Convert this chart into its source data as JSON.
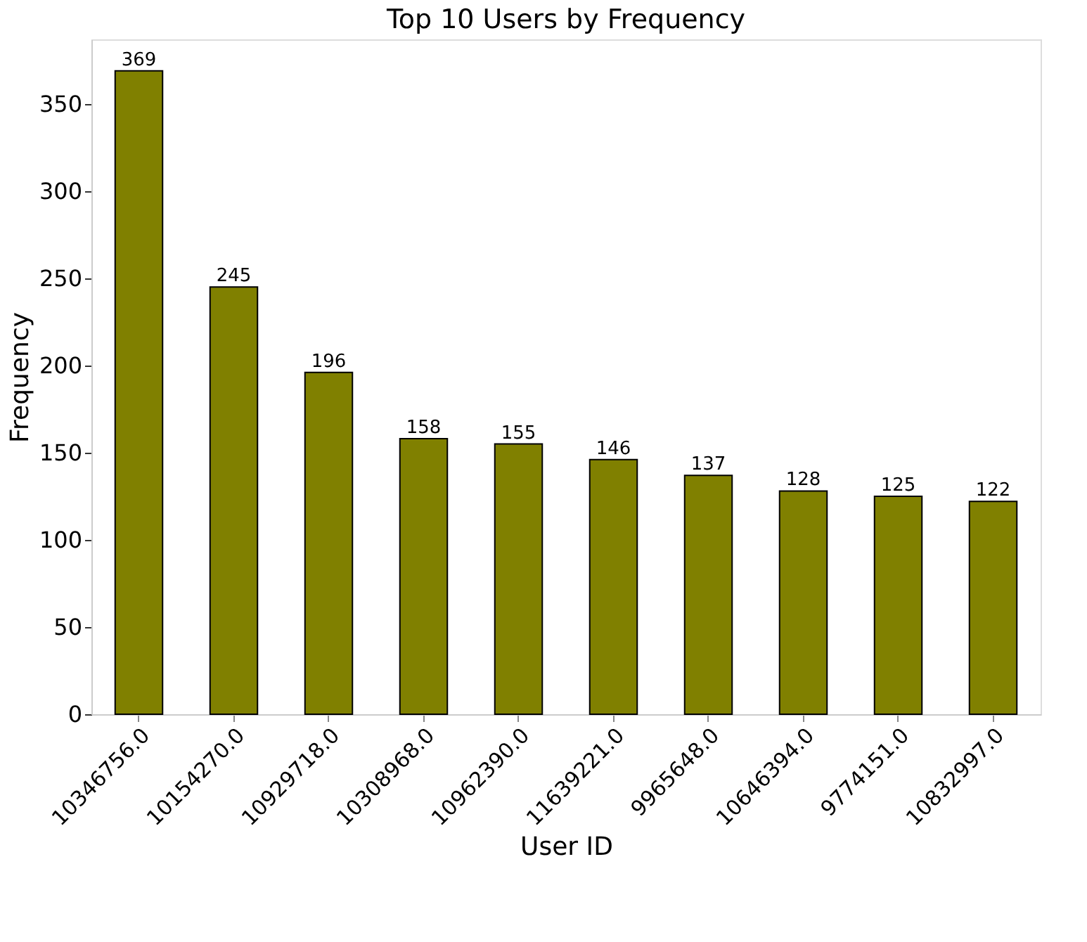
{
  "chart_data": {
    "type": "bar",
    "title": "Top 10 Users by Frequency",
    "xlabel": "User ID",
    "ylabel": "Frequency",
    "categories": [
      "10346756.0",
      "10154270.0",
      "10929718.0",
      "10308968.0",
      "10962390.0",
      "11639221.0",
      "9965648.0",
      "10646394.0",
      "9774151.0",
      "10832997.0"
    ],
    "values": [
      369,
      245,
      196,
      158,
      155,
      146,
      137,
      128,
      125,
      122
    ],
    "color": "#808000",
    "ylim": [
      0,
      387
    ],
    "yticks": [
      0,
      50,
      100,
      150,
      200,
      250,
      300,
      350
    ],
    "grid": false,
    "data_labels": true
  }
}
